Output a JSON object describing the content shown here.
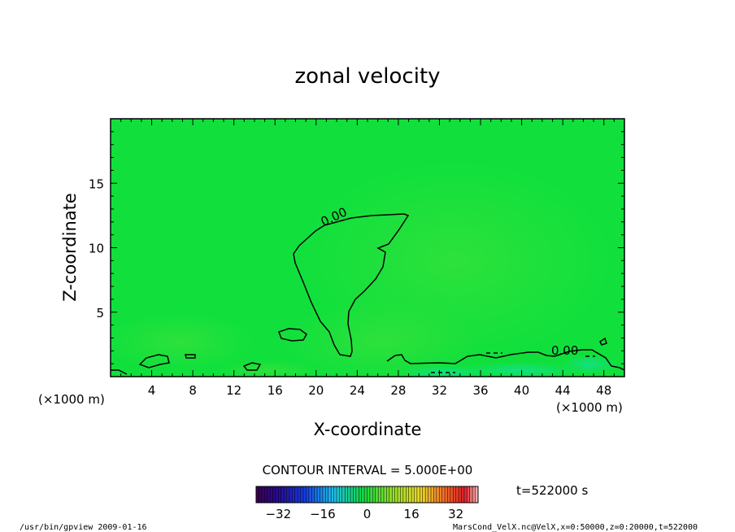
{
  "colors": {
    "field_base": "#11e03c",
    "field_warm": "#3fe23a",
    "field_cool": "#1ae2ae",
    "contour": "#000000",
    "frame": "#000000"
  },
  "chart_data": {
    "type": "heatmap",
    "title": "zonal velocity",
    "xlabel": "X-coordinate",
    "ylabel": "Z-coordinate",
    "x_unit_left": "(×1000 m)",
    "x_unit_right": "(×1000 m)",
    "xlim": [
      0,
      50
    ],
    "ylim": [
      0,
      20
    ],
    "x_ticks": [
      "4",
      "8",
      "12",
      "16",
      "20",
      "24",
      "28",
      "32",
      "36",
      "40",
      "44",
      "48"
    ],
    "y_ticks": [
      "5",
      "10",
      "15"
    ],
    "contour_labels": [
      {
        "text": "0.00",
        "x": 21.9,
        "z": 12.1
      },
      {
        "text": "0.00",
        "x": 44.2,
        "z": 1.7
      }
    ],
    "contour_interval_text": "CONTOUR INTERVAL = 5.000E+00",
    "time_text": "t=522000 s",
    "colorbar": {
      "min": -40,
      "max": 40,
      "tick_labels": [
        "-32",
        "-16",
        "0",
        "16",
        "32"
      ]
    },
    "footer_left": "/usr/bin/gpview   2009-01-16",
    "footer_right": "MarsCond_VelX.nc@VelX,x=0:50000,z=0:20000,t=522000"
  }
}
